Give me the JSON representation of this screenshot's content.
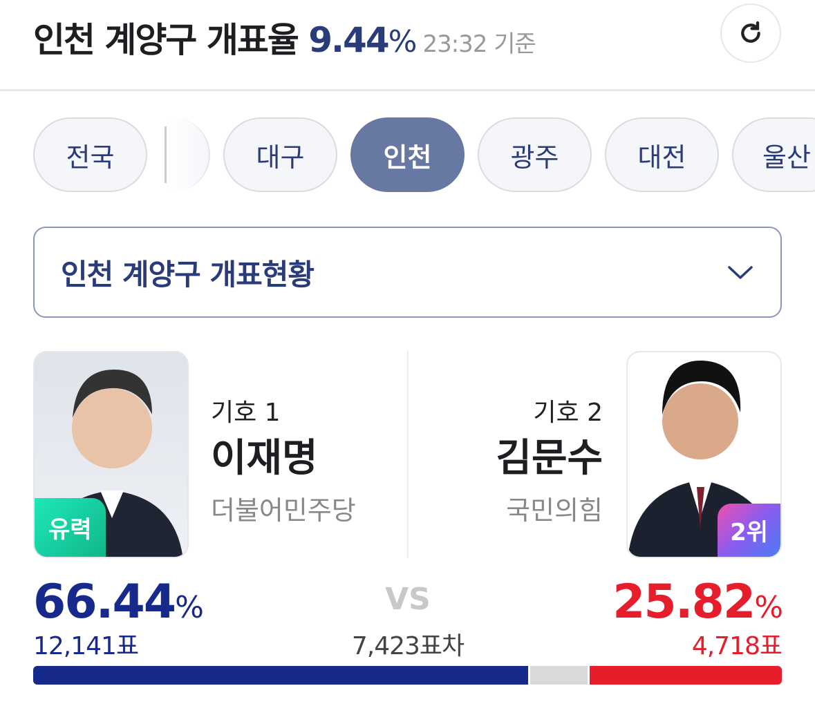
{
  "header": {
    "title": "인천 계양구 개표율",
    "rate": "9.44",
    "pct": "%",
    "time": "23:32 기준",
    "refresh_icon": "refresh-icon"
  },
  "tabs": [
    {
      "label": "전국"
    },
    {
      "label": "대구"
    },
    {
      "label": "인천",
      "active": true
    },
    {
      "label": "광주"
    },
    {
      "label": "대전"
    },
    {
      "label": "울산"
    }
  ],
  "dropdown": {
    "label": "인천 계양구 개표현황",
    "icon": "chevron-down-icon"
  },
  "candidates": [
    {
      "number": "기호 1",
      "name": "이재명",
      "party": "더불어민주당",
      "badge": "유력",
      "percent": "66.44",
      "votes": "12,141표",
      "color": "#172a8c"
    },
    {
      "number": "기호 2",
      "name": "김문수",
      "party": "국민의힘",
      "badge": "2위",
      "percent": "25.82",
      "votes": "4,718표",
      "color": "#e61e2b"
    }
  ],
  "vs": {
    "label": "VS",
    "diff": "7,423표차"
  },
  "pct_sign": "%",
  "bar": {
    "share1": 66.44,
    "share2": 25.82,
    "other_color": "#d9d9d9"
  }
}
